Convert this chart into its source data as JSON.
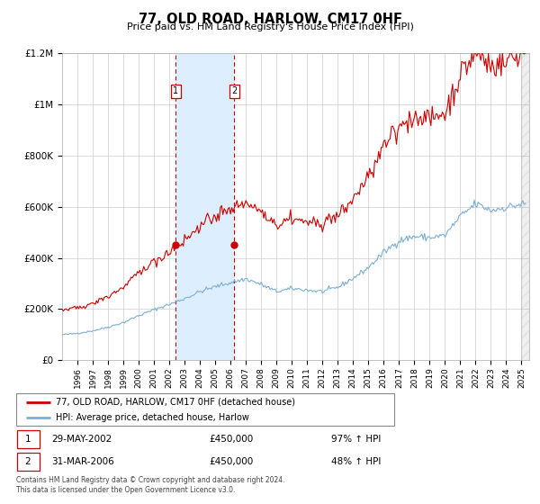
{
  "title": "77, OLD ROAD, HARLOW, CM17 0HF",
  "subtitle": "Price paid vs. HM Land Registry's House Price Index (HPI)",
  "sale1_year": 2002.41,
  "sale1_price": 450000,
  "sale2_year": 2006.25,
  "sale2_price": 450000,
  "sale1_pct": "97% ↑ HPI",
  "sale2_pct": "48% ↑ HPI",
  "sale1_date_str": "29-MAY-2002",
  "sale2_date_str": "31-MAR-2006",
  "sale1_price_str": "£450,000",
  "sale2_price_str": "£450,000",
  "legend_line1": "77, OLD ROAD, HARLOW, CM17 0HF (detached house)",
  "legend_line2": "HPI: Average price, detached house, Harlow",
  "footer1": "Contains HM Land Registry data © Crown copyright and database right 2024.",
  "footer2": "This data is licensed under the Open Government Licence v3.0.",
  "hpi_color": "#7bafd4",
  "price_color": "#cc0000",
  "shade_color": "#ddeeff",
  "ylim": [
    0,
    1200000
  ],
  "yticks": [
    0,
    200000,
    400000,
    600000,
    800000,
    1000000,
    1200000
  ],
  "ytick_labels": [
    "£0",
    "£200K",
    "£400K",
    "£600K",
    "£800K",
    "£1M",
    "£1.2M"
  ],
  "xlim_start": 1995.0,
  "xlim_end": 2025.5,
  "xtick_years": [
    1996,
    1997,
    1998,
    1999,
    2000,
    2001,
    2002,
    2003,
    2004,
    2005,
    2006,
    2007,
    2008,
    2009,
    2010,
    2011,
    2012,
    2013,
    2014,
    2015,
    2016,
    2017,
    2018,
    2019,
    2020,
    2021,
    2022,
    2023,
    2024,
    2025
  ]
}
